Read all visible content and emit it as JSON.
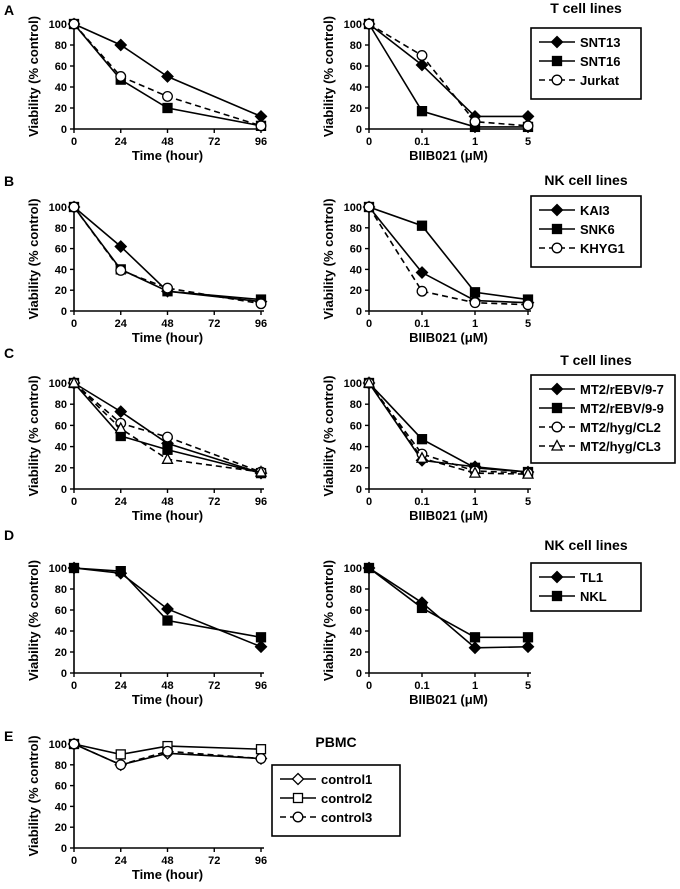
{
  "chart_data": [
    {
      "panel": "A",
      "type": "line",
      "xlabel": "Time (hour)",
      "ylabel": "Viability (% control)",
      "x_scale": "linear",
      "xlim": [
        0,
        96
      ],
      "ylim": [
        0,
        100
      ],
      "xticks": [
        "0",
        "24",
        "48",
        "72",
        "96"
      ],
      "yticks": [
        "0",
        "20",
        "40",
        "60",
        "80",
        "100"
      ],
      "x": [
        0,
        24,
        48,
        96
      ],
      "series": [
        {
          "name": "SNT13",
          "values": [
            100,
            80,
            50,
            12
          ]
        },
        {
          "name": "SNT16",
          "values": [
            100,
            47,
            20,
            3
          ]
        },
        {
          "name": "Jurkat",
          "values": [
            100,
            50,
            31,
            3
          ]
        }
      ]
    },
    {
      "panel": "A",
      "type": "line",
      "xlabel": "BIIB021 (μM)",
      "ylabel": "Viability (% control)",
      "x_scale": "category",
      "ylim": [
        0,
        100
      ],
      "xticks": [
        "0",
        "0.1",
        "1",
        "5"
      ],
      "yticks": [
        "0",
        "20",
        "40",
        "60",
        "80",
        "100"
      ],
      "series": [
        {
          "name": "SNT13",
          "values": [
            100,
            61,
            12,
            12
          ]
        },
        {
          "name": "SNT16",
          "values": [
            100,
            17,
            2,
            2
          ]
        },
        {
          "name": "Jurkat",
          "values": [
            100,
            70,
            7,
            3
          ]
        }
      ]
    },
    {
      "panel": "B",
      "type": "line",
      "xlabel": "Time (hour)",
      "ylabel": "Viability (% control)",
      "x_scale": "linear",
      "xlim": [
        0,
        96
      ],
      "ylim": [
        0,
        100
      ],
      "xticks": [
        "0",
        "24",
        "48",
        "72",
        "96"
      ],
      "yticks": [
        "0",
        "20",
        "40",
        "60",
        "80",
        "100"
      ],
      "x": [
        0,
        24,
        48,
        96
      ],
      "series": [
        {
          "name": "KAI3",
          "values": [
            100,
            62,
            19,
            9
          ]
        },
        {
          "name": "SNK6",
          "values": [
            100,
            40,
            19,
            11
          ]
        },
        {
          "name": "KHYG1",
          "values": [
            100,
            39,
            22,
            7
          ]
        }
      ]
    },
    {
      "panel": "B",
      "type": "line",
      "xlabel": "BIIB021 (μM)",
      "ylabel": "Viability (% control)",
      "x_scale": "category",
      "ylim": [
        0,
        100
      ],
      "xticks": [
        "0",
        "0.1",
        "1",
        "5"
      ],
      "yticks": [
        "0",
        "20",
        "40",
        "60",
        "80",
        "100"
      ],
      "series": [
        {
          "name": "KAI3",
          "values": [
            100,
            37,
            10,
            8
          ]
        },
        {
          "name": "SNK6",
          "values": [
            100,
            82,
            18,
            11
          ]
        },
        {
          "name": "KHYG1",
          "values": [
            100,
            19,
            8,
            6
          ]
        }
      ]
    },
    {
      "panel": "C",
      "type": "line",
      "xlabel": "Time (hour)",
      "ylabel": "Viability (% control)",
      "x_scale": "linear",
      "xlim": [
        0,
        96
      ],
      "ylim": [
        0,
        100
      ],
      "xticks": [
        "0",
        "24",
        "48",
        "72",
        "96"
      ],
      "yticks": [
        "0",
        "20",
        "40",
        "60",
        "80",
        "100"
      ],
      "x": [
        0,
        24,
        48,
        96
      ],
      "series": [
        {
          "name": "MT2/rEBV/9-7",
          "values": [
            100,
            73,
            43,
            15
          ]
        },
        {
          "name": "MT2/rEBV/9-9",
          "values": [
            100,
            50,
            37,
            15
          ]
        },
        {
          "name": "MT2/hyg/CL2",
          "values": [
            100,
            62,
            49,
            16
          ]
        },
        {
          "name": "MT2/hyg/CL3",
          "values": [
            100,
            57,
            28,
            16
          ]
        }
      ]
    },
    {
      "panel": "C",
      "type": "line",
      "xlabel": "BIIB021 (μM)",
      "ylabel": "Viability (% control)",
      "x_scale": "category",
      "ylim": [
        0,
        100
      ],
      "xticks": [
        "0",
        "0.1",
        "1",
        "5"
      ],
      "yticks": [
        "0",
        "20",
        "40",
        "60",
        "80",
        "100"
      ],
      "series": [
        {
          "name": "MT2/rEBV/9-7",
          "values": [
            100,
            27,
            21,
            16
          ]
        },
        {
          "name": "MT2/rEBV/9-9",
          "values": [
            100,
            47,
            20,
            16
          ]
        },
        {
          "name": "MT2/hyg/CL2",
          "values": [
            100,
            33,
            17,
            15
          ]
        },
        {
          "name": "MT2/hyg/CL3",
          "values": [
            100,
            29,
            15,
            14
          ]
        }
      ]
    },
    {
      "panel": "D",
      "type": "line",
      "xlabel": "Time (hour)",
      "ylabel": "Viability (% control)",
      "x_scale": "linear",
      "xlim": [
        0,
        96
      ],
      "ylim": [
        0,
        100
      ],
      "xticks": [
        "0",
        "24",
        "48",
        "72",
        "96"
      ],
      "yticks": [
        "0",
        "20",
        "40",
        "60",
        "80",
        "100"
      ],
      "x": [
        0,
        24,
        48,
        96
      ],
      "series": [
        {
          "name": "TL1",
          "values": [
            100,
            95,
            61,
            25
          ]
        },
        {
          "name": "NKL",
          "values": [
            100,
            97,
            50,
            34
          ]
        }
      ]
    },
    {
      "panel": "D",
      "type": "line",
      "xlabel": "BIIB021 (μM)",
      "ylabel": "Viability (% control)",
      "x_scale": "category",
      "ylim": [
        0,
        100
      ],
      "xticks": [
        "0",
        "0.1",
        "1",
        "5"
      ],
      "yticks": [
        "0",
        "20",
        "40",
        "60",
        "80",
        "100"
      ],
      "series": [
        {
          "name": "TL1",
          "values": [
            100,
            67,
            24,
            25
          ]
        },
        {
          "name": "NKL",
          "values": [
            100,
            62,
            34,
            34
          ]
        }
      ]
    },
    {
      "panel": "E",
      "type": "line",
      "xlabel": "Time (hour)",
      "ylabel": "Viability (% control)",
      "x_scale": "linear",
      "xlim": [
        0,
        96
      ],
      "ylim": [
        0,
        100
      ],
      "xticks": [
        "0",
        "24",
        "48",
        "72",
        "96"
      ],
      "yticks": [
        "0",
        "20",
        "40",
        "60",
        "80",
        "100"
      ],
      "x": [
        0,
        24,
        48,
        96
      ],
      "series": [
        {
          "name": "control1",
          "values": [
            100,
            80,
            91,
            86
          ]
        },
        {
          "name": "control2",
          "values": [
            100,
            90,
            98,
            95
          ]
        },
        {
          "name": "control3",
          "values": [
            100,
            80,
            93,
            86
          ]
        }
      ]
    }
  ],
  "legends": [
    {
      "panel": "A",
      "title": "T cell lines",
      "entries": [
        "SNT13",
        "SNT16",
        "Jurkat"
      ]
    },
    {
      "panel": "B",
      "title": "NK cell lines",
      "entries": [
        "KAI3",
        "SNK6",
        "KHYG1"
      ]
    },
    {
      "panel": "C",
      "title": "T cell lines",
      "entries": [
        "MT2/rEBV/9-7",
        "MT2/rEBV/9-9",
        "MT2/hyg/CL2",
        "MT2/hyg/CL3"
      ]
    },
    {
      "panel": "D",
      "title": "NK cell lines",
      "entries": [
        "TL1",
        "NKL"
      ]
    },
    {
      "panel": "E",
      "title": "PBMC",
      "entries": [
        "control1",
        "control2",
        "control3"
      ]
    }
  ],
  "colors": {
    "ink": "#000000",
    "open_marker_fill": "#ffffff"
  }
}
